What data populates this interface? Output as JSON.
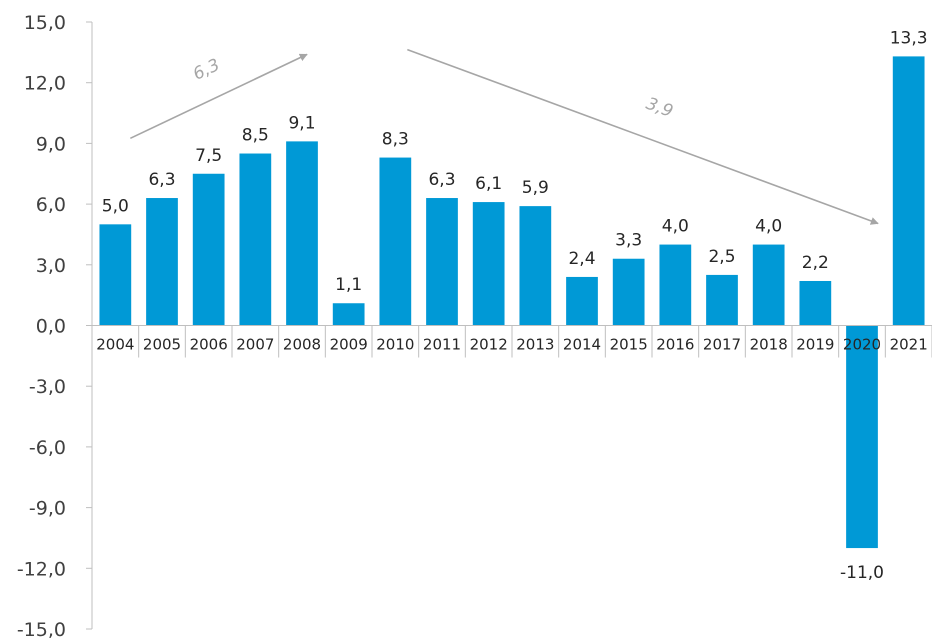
{
  "chart_data": {
    "type": "bar",
    "title": "",
    "xlabel": "",
    "ylabel": "",
    "ylim": [
      -15,
      15
    ],
    "yticks": [
      "15,0",
      "12,0",
      "9,0",
      "6,0",
      "3,0",
      "0,0",
      "-3,0",
      "-6,0",
      "-9,0",
      "-12,0",
      "-15,0"
    ],
    "categories": [
      "2004",
      "2005",
      "2006",
      "2007",
      "2008",
      "2009",
      "2010",
      "2011",
      "2012",
      "2013",
      "2014",
      "2015",
      "2016",
      "2017",
      "2018",
      "2019",
      "2020",
      "2021"
    ],
    "values": [
      5.0,
      6.3,
      7.5,
      8.5,
      9.1,
      1.1,
      8.3,
      6.3,
      6.1,
      5.9,
      2.4,
      3.3,
      4.0,
      2.5,
      4.0,
      2.2,
      -11.0,
      13.3
    ],
    "value_labels": [
      "5,0",
      "6,3",
      "7,5",
      "8,5",
      "9,1",
      "1,1",
      "8,3",
      "6,3",
      "6,1",
      "5,9",
      "2,4",
      "3,3",
      "4,0",
      "2,5",
      "4,0",
      "2,2",
      "-11,0",
      "13,3"
    ],
    "bar_color": "#0099d6",
    "grid": false,
    "legend": "none",
    "annotations": [
      {
        "label": "6,3",
        "from": "2004",
        "to": "2008",
        "direction": "up"
      },
      {
        "label": "3,9",
        "from": "2010",
        "to": "2020",
        "direction": "down"
      }
    ]
  }
}
